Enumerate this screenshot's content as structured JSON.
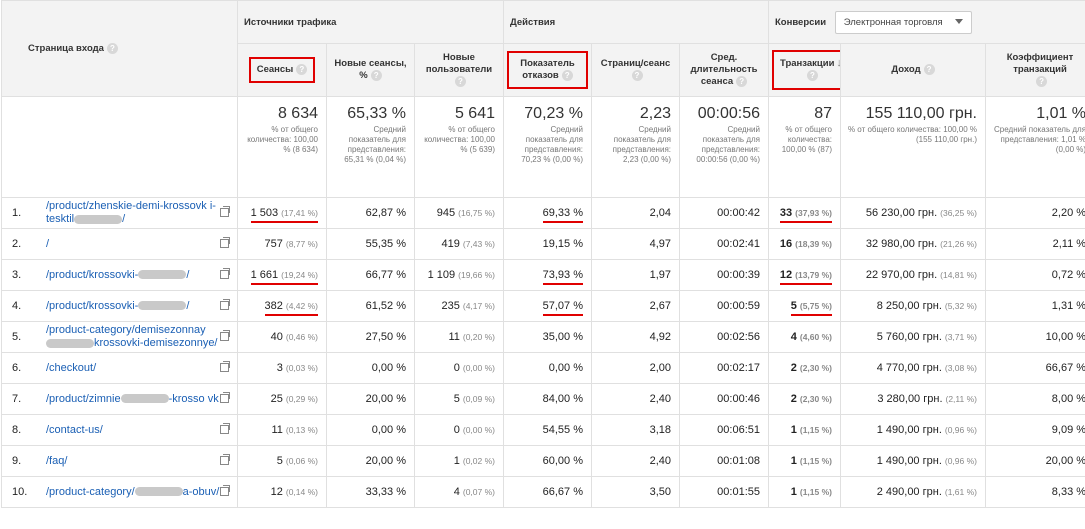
{
  "header": {
    "entry_page_label": "Страница входа",
    "groups": {
      "traffic": "Источники трафика",
      "actions": "Действия",
      "conversions": "Конверсии",
      "conversion_select": "Электронная торговля"
    },
    "columns": {
      "sessions": "Сеансы",
      "new_sessions": "Новые сеансы, %",
      "new_users": "Новые пользователи",
      "bounce_rate": "Показатель отказов",
      "pages_per_session": "Страниц/сеанс",
      "avg_duration": "Сред. длительность сеанса",
      "transactions": "Транзакции",
      "revenue": "Доход",
      "conversion_rate": "Коэффициент транзакций"
    },
    "help_glyph": "?"
  },
  "totals": {
    "sessions": {
      "value": "8 634",
      "note": "% от общего количества: 100,00 % (8 634)"
    },
    "new_sessions": {
      "value": "65,33 %",
      "note": "Средний показатель для представления: 65,31 % (0,04 %)"
    },
    "new_users": {
      "value": "5 641",
      "note": "% от общего количества: 100,00 % (5 639)"
    },
    "bounce_rate": {
      "value": "70,23 %",
      "note": "Средний показатель для представления: 70,23 % (0,00 %)"
    },
    "pages_per_session": {
      "value": "2,23",
      "note": "Средний показатель для представления: 2,23 (0,00 %)"
    },
    "avg_duration": {
      "value": "00:00:56",
      "note": "Средний показатель для представления: 00:00:56 (0,00 %)"
    },
    "transactions": {
      "value": "87",
      "note": "% от общего количества: 100,00 % (87)"
    },
    "revenue": {
      "value": "155 110,00 грн.",
      "note": "% от общего количества: 100,00 % (155 110,00 грн.)"
    },
    "conversion_rate": {
      "value": "1,01 %",
      "note": "Средний показатель для представления: 1,01 % (0,00 %)"
    }
  },
  "rows": [
    {
      "num": "1.",
      "page_a": "/product/zhenskie-demi-krossovk i-tesktil",
      "page_b": "/",
      "sessions": "1 503",
      "sessions_pct": "(17,41 %)",
      "new_sessions": "62,87 %",
      "new_users": "945",
      "new_users_pct": "(16,75 %)",
      "bounce": "69,33 %",
      "pps": "2,04",
      "dur": "00:00:42",
      "tx": "33",
      "tx_pct": "(37,93 %)",
      "rev": "56 230,00 грн.",
      "rev_pct": "(36,25 %)",
      "cr": "2,20 %"
    },
    {
      "num": "2.",
      "page_a": "/",
      "page_b": "",
      "sessions": "757",
      "sessions_pct": "(8,77 %)",
      "new_sessions": "55,35 %",
      "new_users": "419",
      "new_users_pct": "(7,43 %)",
      "bounce": "19,15 %",
      "pps": "4,97",
      "dur": "00:02:41",
      "tx": "16",
      "tx_pct": "(18,39 %)",
      "rev": "32 980,00 грн.",
      "rev_pct": "(21,26 %)",
      "cr": "2,11 %"
    },
    {
      "num": "3.",
      "page_a": "/product/krossovki-",
      "page_b": "/",
      "sessions": "1 661",
      "sessions_pct": "(19,24 %)",
      "new_sessions": "66,77 %",
      "new_users": "1 109",
      "new_users_pct": "(19,66 %)",
      "bounce": "73,93 %",
      "pps": "1,97",
      "dur": "00:00:39",
      "tx": "12",
      "tx_pct": "(13,79 %)",
      "rev": "22 970,00 грн.",
      "rev_pct": "(14,81 %)",
      "cr": "0,72 %"
    },
    {
      "num": "4.",
      "page_a": "/product/krossovki-",
      "page_b": "/",
      "sessions": "382",
      "sessions_pct": "(4,42 %)",
      "new_sessions": "61,52 %",
      "new_users": "235",
      "new_users_pct": "(4,17 %)",
      "bounce": "57,07 %",
      "pps": "2,67",
      "dur": "00:00:59",
      "tx": "5",
      "tx_pct": "(5,75 %)",
      "rev": "8 250,00 грн.",
      "rev_pct": "(5,32 %)",
      "cr": "1,31 %"
    },
    {
      "num": "5.",
      "page_a": "/product-category/demisezonnay",
      "page_b": "krossovki-demisezonnye/",
      "sessions": "40",
      "sessions_pct": "(0,46 %)",
      "new_sessions": "27,50 %",
      "new_users": "11",
      "new_users_pct": "(0,20 %)",
      "bounce": "35,00 %",
      "pps": "4,92",
      "dur": "00:02:56",
      "tx": "4",
      "tx_pct": "(4,60 %)",
      "rev": "5 760,00 грн.",
      "rev_pct": "(3,71 %)",
      "cr": "10,00 %"
    },
    {
      "num": "6.",
      "page_a": "/checkout/",
      "page_b": "",
      "sessions": "3",
      "sessions_pct": "(0,03 %)",
      "new_sessions": "0,00 %",
      "new_users": "0",
      "new_users_pct": "(0,00 %)",
      "bounce": "0,00 %",
      "pps": "2,00",
      "dur": "00:02:17",
      "tx": "2",
      "tx_pct": "(2,30 %)",
      "rev": "4 770,00 грн.",
      "rev_pct": "(3,08 %)",
      "cr": "66,67 %"
    },
    {
      "num": "7.",
      "page_a": "/product/zimnie",
      "page_b": "-krosso vk",
      "sessions": "25",
      "sessions_pct": "(0,29 %)",
      "new_sessions": "20,00 %",
      "new_users": "5",
      "new_users_pct": "(0,09 %)",
      "bounce": "84,00 %",
      "pps": "2,40",
      "dur": "00:00:46",
      "tx": "2",
      "tx_pct": "(2,30 %)",
      "rev": "3 280,00 грн.",
      "rev_pct": "(2,11 %)",
      "cr": "8,00 %"
    },
    {
      "num": "8.",
      "page_a": "/contact-us/",
      "page_b": "",
      "sessions": "11",
      "sessions_pct": "(0,13 %)",
      "new_sessions": "0,00 %",
      "new_users": "0",
      "new_users_pct": "(0,00 %)",
      "bounce": "54,55 %",
      "pps": "3,18",
      "dur": "00:06:51",
      "tx": "1",
      "tx_pct": "(1,15 %)",
      "rev": "1 490,00 грн.",
      "rev_pct": "(0,96 %)",
      "cr": "9,09 %"
    },
    {
      "num": "9.",
      "page_a": "/faq/",
      "page_b": "",
      "sessions": "5",
      "sessions_pct": "(0,06 %)",
      "new_sessions": "20,00 %",
      "new_users": "1",
      "new_users_pct": "(0,02 %)",
      "bounce": "60,00 %",
      "pps": "2,40",
      "dur": "00:01:08",
      "tx": "1",
      "tx_pct": "(1,15 %)",
      "rev": "1 490,00 грн.",
      "rev_pct": "(0,96 %)",
      "cr": "20,00 %"
    },
    {
      "num": "10.",
      "page_a": "/product-category/",
      "page_b": "a-obuv/",
      "sessions": "12",
      "sessions_pct": "(0,14 %)",
      "new_sessions": "33,33 %",
      "new_users": "4",
      "new_users_pct": "(0,07 %)",
      "bounce": "66,67 %",
      "pps": "3,50",
      "dur": "00:01:55",
      "tx": "1",
      "tx_pct": "(1,15 %)",
      "rev": "2 490,00 грн.",
      "rev_pct": "(1,61 %)",
      "cr": "8,33 %"
    }
  ],
  "highlights": {
    "underlined_rows": [
      0,
      2,
      3
    ],
    "highlight_color": "#e00000"
  }
}
